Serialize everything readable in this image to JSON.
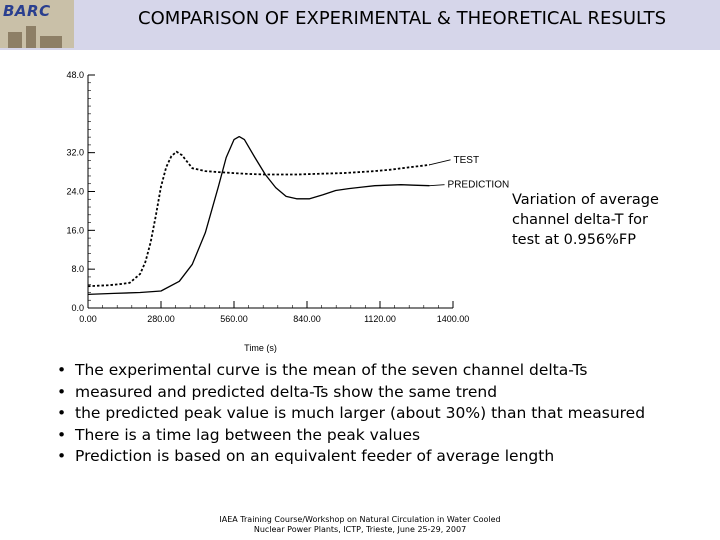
{
  "header": {
    "logo_text": "BARC",
    "title": "COMPARISON OF EXPERIMENTAL & THEORETICAL RESULTS"
  },
  "caption": {
    "lines": [
      "Variation of average",
      "channel delta-T for",
      "test at 0.956%FP"
    ]
  },
  "bullets": [
    "The experimental curve is the mean of the seven channel delta-Ts",
    "measured and predicted delta-Ts show the same trend",
    "the predicted peak value is much larger (about 30%) than that measured",
    "There is a time lag between the peak values",
    "Prediction is based on an equivalent feeder of average length"
  ],
  "footer": {
    "line1": "IAEA Training Course/Workshop on Natural Circulation in Water Cooled",
    "line2": "Nuclear Power Plants, ICTP, Trieste, June 25-29, 2007"
  },
  "chart_data": {
    "type": "line",
    "title": "",
    "xlabel": "Time (s)",
    "ylabel": "",
    "xlim": [
      0,
      1400
    ],
    "ylim": [
      0,
      48
    ],
    "x_ticks": [
      0,
      280,
      560,
      840,
      1120,
      1400
    ],
    "x_tick_labels": [
      "0.00",
      "280.00",
      "560.00",
      "840.00",
      "1120.00",
      "1400.00"
    ],
    "y_ticks": [
      0,
      8,
      16,
      24,
      32,
      48
    ],
    "y_tick_labels": [
      "0.0",
      "8.0",
      "16.0",
      "24.0",
      "32.0",
      "48.0"
    ],
    "grid": false,
    "series": [
      {
        "name": "TEST",
        "style": "dashed",
        "x": [
          0,
          40,
          80,
          120,
          160,
          200,
          220,
          240,
          260,
          280,
          300,
          320,
          340,
          360,
          400,
          450,
          500,
          560,
          620,
          680,
          740,
          800,
          860,
          920,
          980,
          1040,
          1100,
          1160,
          1220,
          1280,
          1310
        ],
        "y": [
          4.5,
          4.6,
          4.7,
          4.9,
          5.2,
          7,
          9.5,
          13.5,
          19,
          25,
          29,
          31.3,
          32.2,
          31.5,
          28.8,
          28.2,
          28,
          27.8,
          27.6,
          27.5,
          27.5,
          27.5,
          27.6,
          27.7,
          27.8,
          28,
          28.2,
          28.5,
          28.9,
          29.3,
          29.5
        ]
      },
      {
        "name": "PREDICTION",
        "style": "solid",
        "x": [
          0,
          100,
          200,
          280,
          350,
          400,
          450,
          500,
          530,
          560,
          580,
          600,
          640,
          680,
          720,
          760,
          800,
          850,
          900,
          950,
          1000,
          1050,
          1100,
          1150,
          1200,
          1250,
          1310
        ],
        "y": [
          2.8,
          3.0,
          3.2,
          3.5,
          5.5,
          9,
          15.5,
          25,
          31,
          34.7,
          35.3,
          34.7,
          31,
          27.5,
          24.8,
          23,
          22.5,
          22.5,
          23.3,
          24.2,
          24.6,
          24.9,
          25.2,
          25.3,
          25.4,
          25.3,
          25.2
        ]
      }
    ]
  }
}
